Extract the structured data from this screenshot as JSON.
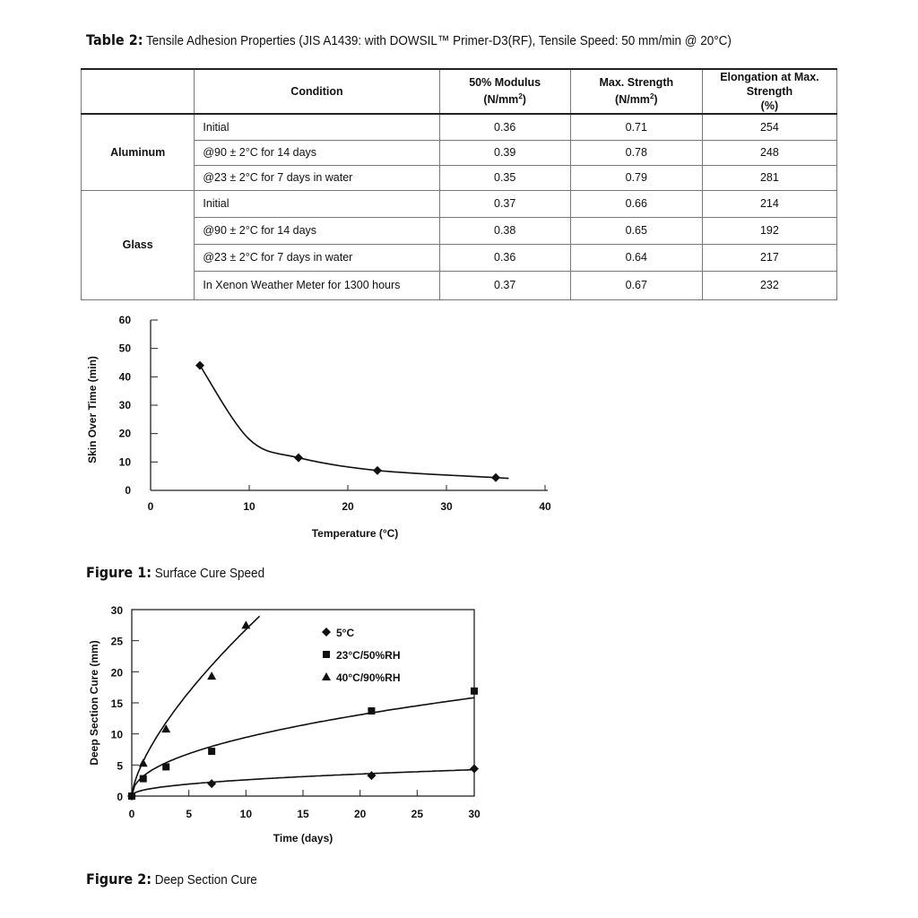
{
  "table": {
    "caption_label": "Table 2:",
    "caption_text": "Tensile Adhesion Properties (JIS A1439: with DOWSIL™ Primer-D3(RF), Tensile Speed: 50 mm/min @ 20°C)",
    "headers": [
      "",
      "Condition",
      "50% Modulus (N/mm²)",
      "Max. Strength (N/mm²)",
      "Elongation at Max. Strength (%)"
    ],
    "groups": [
      {
        "name": "Aluminum",
        "rows": [
          [
            "Initial",
            "0.36",
            "0.71",
            "254"
          ],
          [
            "@90 ± 2°C for 14 days",
            "0.39",
            "0.78",
            "248"
          ],
          [
            "@23 ± 2°C for 7 days in water",
            "0.35",
            "0.79",
            "281"
          ]
        ]
      },
      {
        "name": "Glass",
        "rows": [
          [
            "Initial",
            "0.37",
            "0.66",
            "214"
          ],
          [
            "@90 ± 2°C for 14 days",
            "0.38",
            "0.65",
            "192"
          ],
          [
            "@23 ± 2°C for 7 days in water",
            "0.36",
            "0.64",
            "217"
          ],
          [
            "In Xenon Weather Meter for 1300 hours",
            "0.37",
            "0.67",
            "232"
          ]
        ]
      }
    ]
  },
  "figure1": {
    "caption_label": "Figure 1:",
    "caption_text": "Surface Cure Speed"
  },
  "figure2": {
    "caption_label": "Figure 2:",
    "caption_text": "Deep Section Cure"
  },
  "chart_data": [
    {
      "type": "line",
      "xlabel": "Temperature (°C)",
      "ylabel": "Skin Over Time (min)",
      "xlim": [
        0,
        40
      ],
      "ylim": [
        0,
        60
      ],
      "xticks": [
        0,
        10,
        20,
        30,
        40
      ],
      "yticks": [
        0,
        10,
        20,
        30,
        40,
        50,
        60
      ],
      "grid": false,
      "marker": "diamond",
      "x": [
        5,
        15,
        23,
        35
      ],
      "y": [
        44,
        11.5,
        7,
        4.5
      ]
    },
    {
      "type": "line",
      "xlabel": "Time (days)",
      "ylabel": "Deep Section Cure (mm)",
      "xlim": [
        0,
        30
      ],
      "ylim": [
        0,
        30
      ],
      "xticks": [
        0,
        5,
        10,
        15,
        20,
        25,
        30
      ],
      "yticks": [
        0,
        5,
        10,
        15,
        20,
        25,
        30
      ],
      "grid": false,
      "legend": "top-right",
      "series": [
        {
          "name": "5°C",
          "marker": "diamond",
          "x": [
            0,
            7,
            21,
            30
          ],
          "y": [
            0,
            2,
            3.3,
            4.4
          ]
        },
        {
          "name": "23°C/50%RH",
          "marker": "square",
          "x": [
            0,
            1,
            3,
            7,
            21,
            30
          ],
          "y": [
            0,
            2.8,
            4.7,
            7.2,
            13.7,
            16.9
          ]
        },
        {
          "name": "40°C/90%RH",
          "marker": "triangle",
          "x": [
            1,
            3,
            7,
            10
          ],
          "y": [
            5.3,
            10.8,
            19.3,
            27.5
          ]
        }
      ]
    }
  ]
}
